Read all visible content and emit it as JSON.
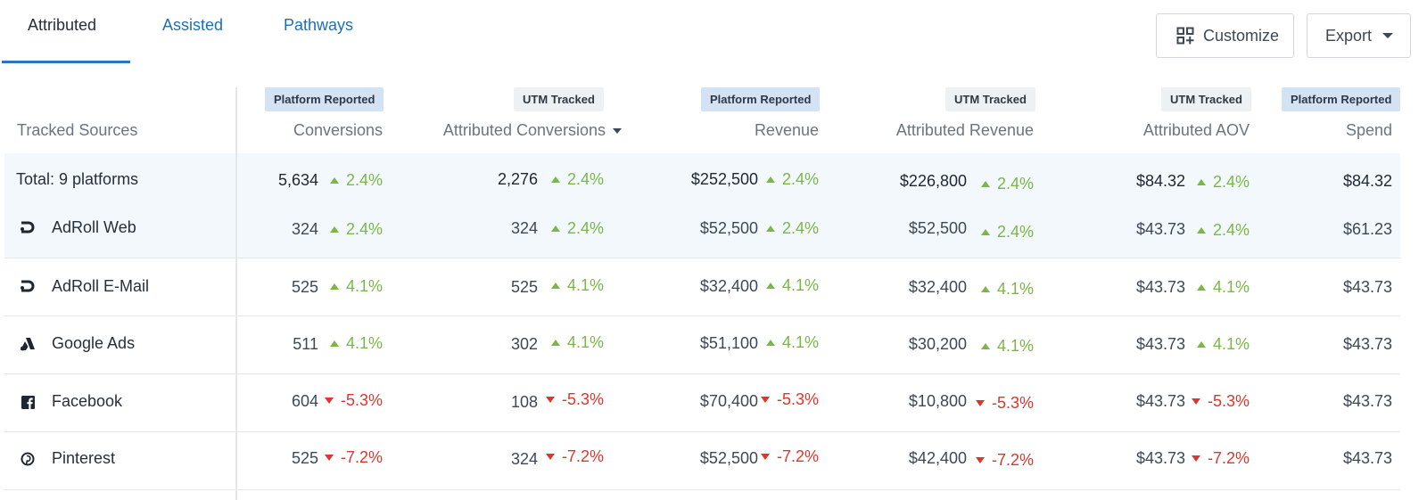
{
  "tabs": [
    {
      "label": "Attributed",
      "active": true
    },
    {
      "label": "Assisted",
      "active": false
    },
    {
      "label": "Pathways",
      "active": false
    }
  ],
  "toolbar": {
    "customize_label": "Customize",
    "customize_icon": "grid-add-icon",
    "export_label": "Export",
    "export_icon": "caret-down-icon"
  },
  "columns": {
    "source_header": "Tracked Sources",
    "list": [
      {
        "badge": "Platform Reported",
        "badge_type": "platform",
        "header": "Conversions"
      },
      {
        "badge": "UTM Tracked",
        "badge_type": "utm",
        "header": "Attributed Conversions",
        "sorted": "desc"
      },
      {
        "badge": "Platform Reported",
        "badge_type": "platform",
        "header": "Revenue"
      },
      {
        "badge": "UTM Tracked",
        "badge_type": "utm",
        "header": "Attributed Revenue"
      },
      {
        "badge": "UTM Tracked",
        "badge_type": "utm",
        "header": "Attributed AOV"
      },
      {
        "badge": "Platform Reported",
        "badge_type": "platform",
        "header": "Spend"
      }
    ]
  },
  "total": {
    "label": "Total: 9 platforms",
    "conversions": "5,634",
    "conversions_change": "2.4%",
    "attr_conversions": "2,276",
    "attr_conversions_change": "2.4%",
    "revenue": "$252,500",
    "revenue_change": "2.4%",
    "attr_revenue": "$226,800",
    "attr_revenue_change": "2.4%",
    "aov": "$84.32",
    "aov_change": "2.4%",
    "spend": "$84.32"
  },
  "rows": [
    {
      "name": "AdRoll Web",
      "icon": "adroll-icon",
      "direction": "up",
      "conversions": "324",
      "conversions_change": "2.4%",
      "attr_conversions": "324",
      "attr_conversions_change": "2.4%",
      "revenue": "$52,500",
      "revenue_change": "2.4%",
      "attr_revenue": "$52,500",
      "attr_revenue_change": "2.4%",
      "aov": "$43.73",
      "aov_change": "2.4%",
      "spend": "$61.23"
    },
    {
      "name": "AdRoll E-Mail",
      "icon": "adroll-icon",
      "direction": "up",
      "conversions": "525",
      "conversions_change": "4.1%",
      "attr_conversions": "525",
      "attr_conversions_change": "4.1%",
      "revenue": "$32,400",
      "revenue_change": "4.1%",
      "attr_revenue": "$32,400",
      "attr_revenue_change": "4.1%",
      "aov": "$43.73",
      "aov_change": "4.1%",
      "spend": "$43.73"
    },
    {
      "name": "Google Ads",
      "icon": "google-ads-icon",
      "direction": "up",
      "conversions": "511",
      "conversions_change": "4.1%",
      "attr_conversions": "302",
      "attr_conversions_change": "4.1%",
      "revenue": "$51,100",
      "revenue_change": "4.1%",
      "attr_revenue": "$30,200",
      "attr_revenue_change": "4.1%",
      "aov": "$43.73",
      "aov_change": "4.1%",
      "spend": "$43.73"
    },
    {
      "name": "Facebook",
      "icon": "facebook-icon",
      "direction": "down",
      "conversions": "604",
      "conversions_change": "-5.3%",
      "attr_conversions": "108",
      "attr_conversions_change": "-5.3%",
      "revenue": "$70,400",
      "revenue_change": "-5.3%",
      "attr_revenue": "$10,800",
      "attr_revenue_change": "-5.3%",
      "aov": "$43.73",
      "aov_change": "-5.3%",
      "spend": "$43.73"
    },
    {
      "name": "Pinterest",
      "icon": "pinterest-icon",
      "direction": "down",
      "conversions": "525",
      "conversions_change": "-7.2%",
      "attr_conversions": "324",
      "attr_conversions_change": "-7.2%",
      "revenue": "$52,500",
      "revenue_change": "-7.2%",
      "attr_revenue": "$42,400",
      "attr_revenue_change": "-7.2%",
      "aov": "$43.73",
      "aov_change": "-7.2%",
      "spend": "$43.73"
    }
  ],
  "colors": {
    "accent": "#2a74c4",
    "positive": "#7ab648",
    "negative": "#d9382e",
    "platform_badge": "#d3e3f3",
    "utm_badge": "#eef1f4",
    "highlight_row": "#f3f8fc"
  }
}
